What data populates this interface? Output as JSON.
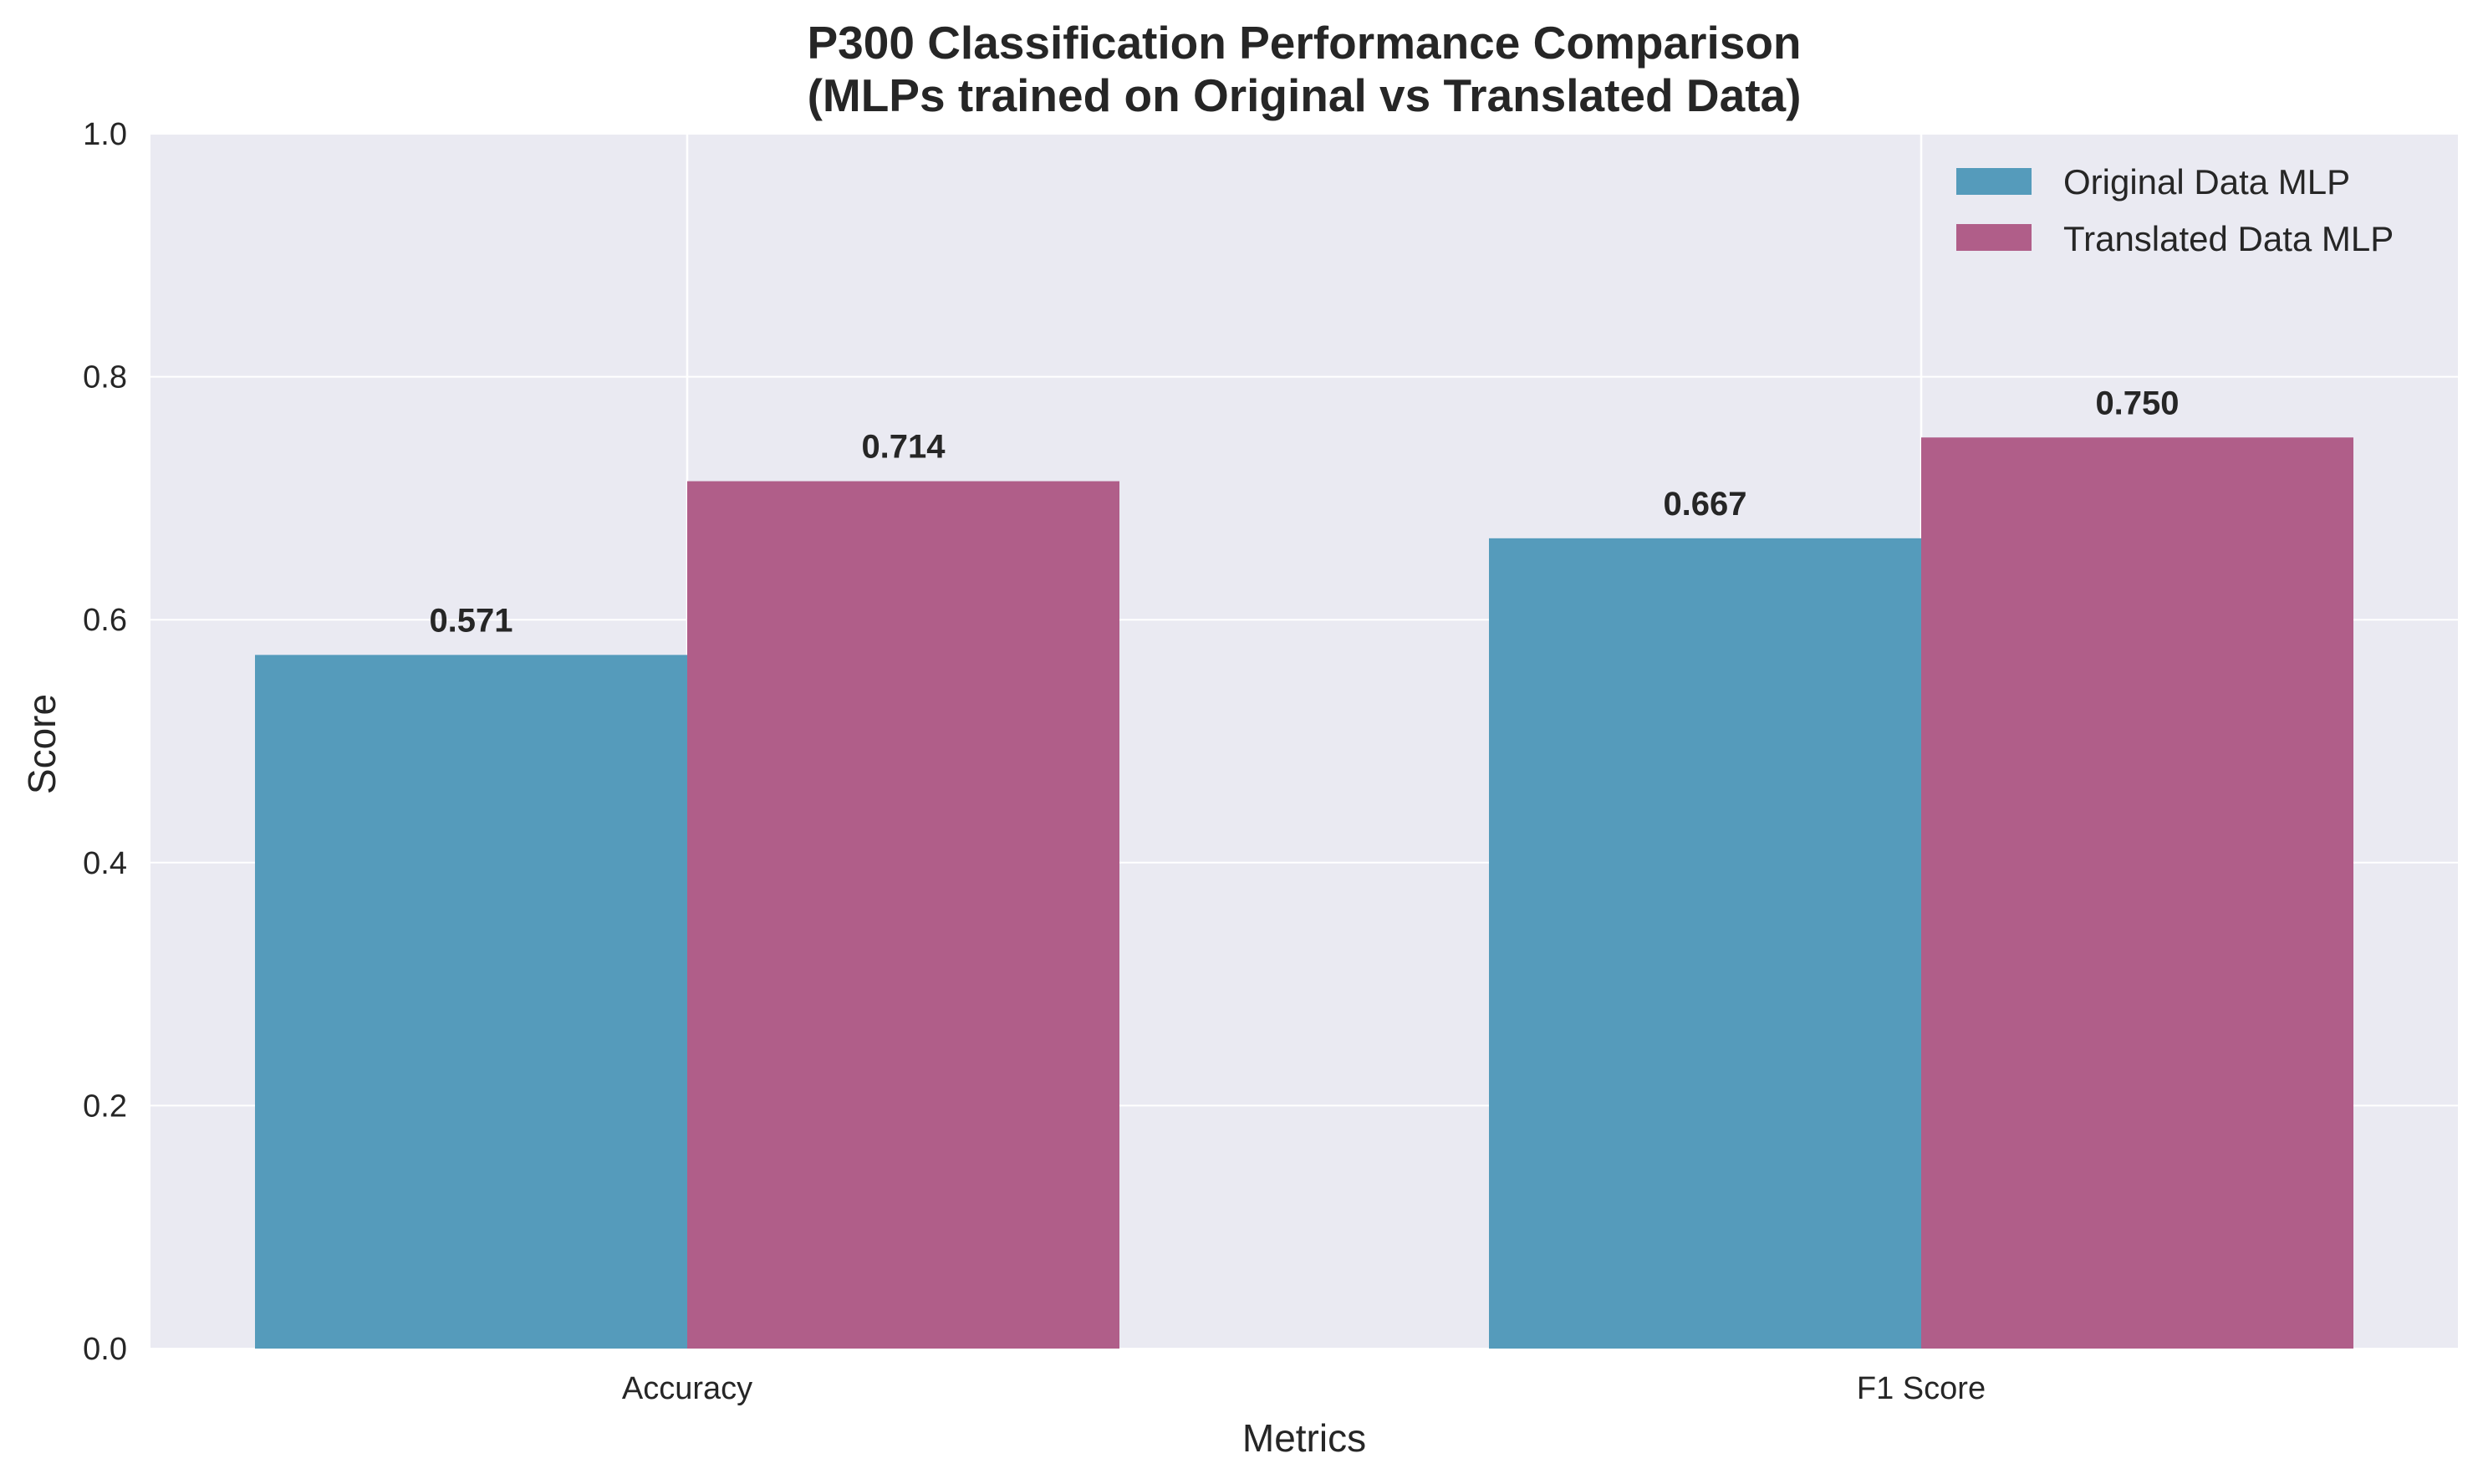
{
  "chart_data": {
    "type": "bar",
    "title_lines": [
      "P300 Classification Performance Comparison",
      "(MLPs trained on Original vs Translated Data)"
    ],
    "xlabel": "Metrics",
    "ylabel": "Score",
    "categories": [
      "Accuracy",
      "F1 Score"
    ],
    "series": [
      {
        "name": "Original Data MLP",
        "values": [
          0.571,
          0.667
        ],
        "labels": [
          "0.571",
          "0.667"
        ],
        "color": "#559bbb"
      },
      {
        "name": "Translated Data MLP",
        "values": [
          0.714,
          0.75
        ],
        "labels": [
          "0.714",
          "0.750"
        ],
        "color": "#b05e89"
      }
    ],
    "ylim": [
      0,
      1
    ],
    "yticks": [
      0.0,
      0.2,
      0.4,
      0.6,
      0.8,
      1.0
    ],
    "ytick_labels": [
      "0.0",
      "0.2",
      "0.4",
      "0.6",
      "0.8",
      "1.0"
    ],
    "grid": true,
    "legend_position": "top-right",
    "background_color": "#eaeaf2",
    "grid_color": "#ffffff"
  }
}
